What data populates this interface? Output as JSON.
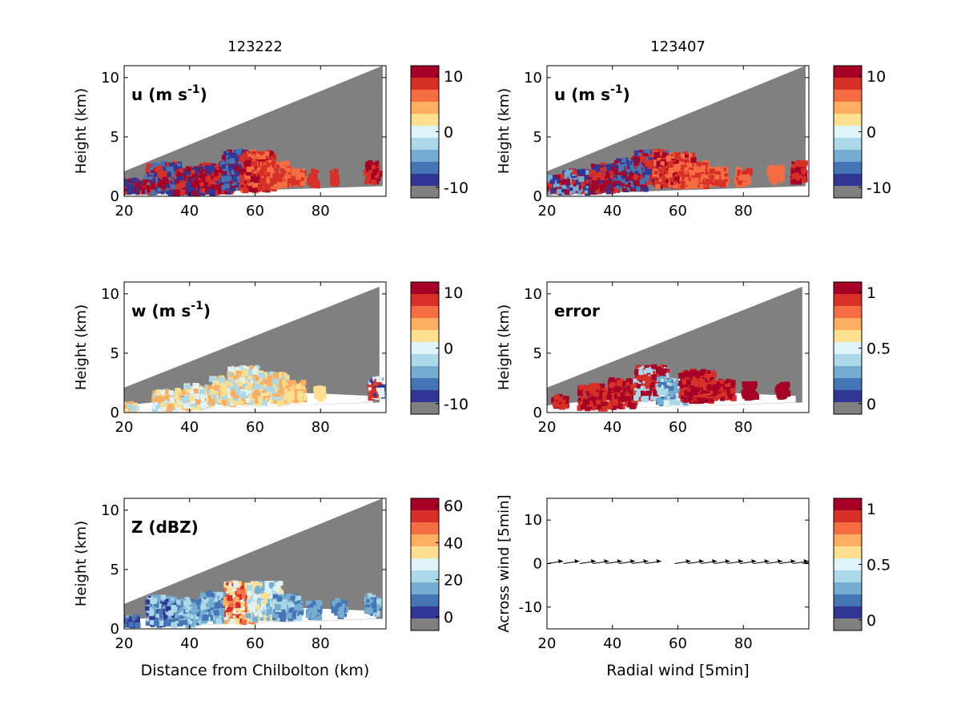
{
  "colors": {
    "background": "#ffffff",
    "missing": "#808080",
    "cmap": [
      "#808080",
      "#313695",
      "#4575b4",
      "#74add1",
      "#abd9e9",
      "#e0f3f8",
      "#fee090",
      "#fdae61",
      "#f46d43",
      "#d73027",
      "#a50026"
    ]
  },
  "chart_data": [
    {
      "id": "u-123222",
      "type": "heatmap",
      "title": "123222",
      "label": "u (m s",
      "label_sup": "-1",
      "label_close": ")",
      "ylabel": "Height (km)",
      "xlabel": "",
      "xlim": [
        20,
        100
      ],
      "ylim": [
        0,
        11
      ],
      "xticks": [
        "20",
        "40",
        "60",
        "80"
      ],
      "yticks": [
        "0",
        "5",
        "10"
      ],
      "colorbar": {
        "ticks": [
          "10",
          "0",
          "-10"
        ]
      },
      "grid": false
    },
    {
      "id": "u-123407",
      "type": "heatmap",
      "title": "123407",
      "label": "u (m s",
      "label_sup": "-1",
      "label_close": ")",
      "ylabel": "Height (km)",
      "xlabel": "",
      "xlim": [
        20,
        100
      ],
      "ylim": [
        0,
        11
      ],
      "xticks": [
        "20",
        "40",
        "60",
        "80"
      ],
      "yticks": [
        "0",
        "5",
        "10"
      ],
      "colorbar": {
        "ticks": [
          "10",
          "0",
          "-10"
        ]
      },
      "grid": false
    },
    {
      "id": "w-123222",
      "type": "heatmap",
      "title": "",
      "label": "w (m s",
      "label_sup": "-1",
      "label_close": ")",
      "ylabel": "Height (km)",
      "xlabel": "",
      "xlim": [
        20,
        100
      ],
      "ylim": [
        0,
        11
      ],
      "xticks": [
        "20",
        "40",
        "60",
        "80"
      ],
      "yticks": [
        "0",
        "5",
        "10"
      ],
      "colorbar": {
        "ticks": [
          "10",
          "0",
          "-10"
        ]
      },
      "grid": false
    },
    {
      "id": "error-123407",
      "type": "heatmap",
      "title": "",
      "label": "error",
      "label_sup": "",
      "label_close": "",
      "ylabel": "Height (km)",
      "xlabel": "",
      "xlim": [
        20,
        100
      ],
      "ylim": [
        0,
        11
      ],
      "xticks": [
        "20",
        "40",
        "60",
        "80"
      ],
      "yticks": [
        "0",
        "5",
        "10"
      ],
      "colorbar": {
        "ticks": [
          "1",
          "0.5",
          "0"
        ]
      },
      "grid": false
    },
    {
      "id": "z-123222",
      "type": "heatmap",
      "title": "",
      "label": "Z (dBZ)",
      "label_sup": "",
      "label_close": "",
      "ylabel": "Height (km)",
      "xlabel": "Distance from Chilbolton (km)",
      "xlim": [
        20,
        100
      ],
      "ylim": [
        0,
        11
      ],
      "xticks": [
        "20",
        "40",
        "60",
        "80"
      ],
      "yticks": [
        "0",
        "5",
        "10"
      ],
      "colorbar": {
        "ticks": [
          "60",
          "40",
          "20",
          "0"
        ]
      },
      "grid": false
    },
    {
      "id": "quiver",
      "type": "scatter",
      "title": "",
      "label": "",
      "label_sup": "",
      "label_close": "",
      "ylabel": "Across wind [5min]",
      "xlabel": "Radial wind [5min]",
      "xlim": [
        20,
        100
      ],
      "ylim": [
        -15,
        15
      ],
      "xticks": [
        "20",
        "40",
        "60",
        "80"
      ],
      "yticks": [
        "-10",
        "0",
        "10"
      ],
      "colorbar": {
        "ticks": [
          "1",
          "0.5",
          "0"
        ]
      },
      "grid": false,
      "x": [
        20,
        25,
        30,
        34,
        38,
        42,
        46,
        50,
        59,
        63,
        67,
        71,
        75,
        79,
        83,
        87,
        91,
        95,
        98
      ],
      "y": [
        0,
        0,
        0,
        0,
        0,
        0,
        0,
        0,
        0,
        0,
        0,
        0,
        0,
        0,
        0,
        0,
        0,
        0,
        0
      ]
    }
  ]
}
